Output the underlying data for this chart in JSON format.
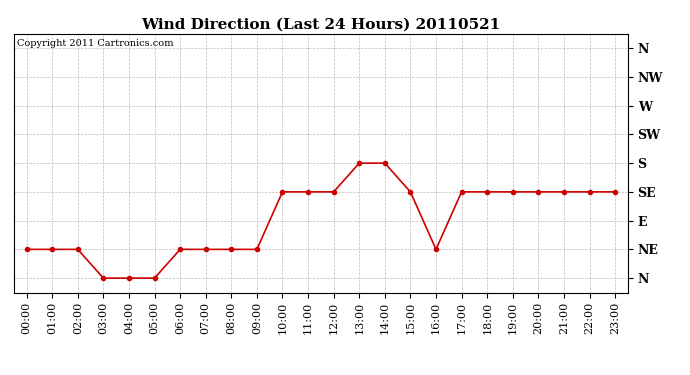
{
  "title": "Wind Direction (Last 24 Hours) 20110521",
  "copyright_text": "Copyright 2011 Cartronics.com",
  "hours": [
    0,
    1,
    2,
    3,
    4,
    5,
    6,
    7,
    8,
    9,
    10,
    11,
    12,
    13,
    14,
    15,
    16,
    17,
    18,
    19,
    20,
    21,
    22,
    23
  ],
  "hour_labels": [
    "00:00",
    "01:00",
    "02:00",
    "03:00",
    "04:00",
    "05:00",
    "06:00",
    "07:00",
    "08:00",
    "09:00",
    "10:00",
    "11:00",
    "12:00",
    "13:00",
    "14:00",
    "15:00",
    "16:00",
    "17:00",
    "18:00",
    "19:00",
    "20:00",
    "21:00",
    "22:00",
    "23:00"
  ],
  "dir_values": [
    1,
    1,
    1,
    0,
    0,
    0,
    1,
    1,
    1,
    1,
    3,
    3,
    3,
    4,
    4,
    3,
    1,
    3,
    3,
    3,
    3,
    3,
    3,
    3
  ],
  "ytick_labels": [
    "N",
    "NE",
    "E",
    "SE",
    "S",
    "SW",
    "W",
    "NW",
    "N"
  ],
  "ytick_values": [
    0,
    1,
    2,
    3,
    4,
    5,
    6,
    7,
    8
  ],
  "ymin": -0.5,
  "ymax": 8.5,
  "line_color": "#cc0000",
  "marker": "o",
  "marker_size": 3,
  "bg_color": "#ffffff",
  "plot_bg_color": "#ffffff",
  "grid_color": "#bbbbbb",
  "title_fontsize": 11,
  "copyright_fontsize": 7,
  "tick_fontsize": 8,
  "ytick_fontsize": 9
}
